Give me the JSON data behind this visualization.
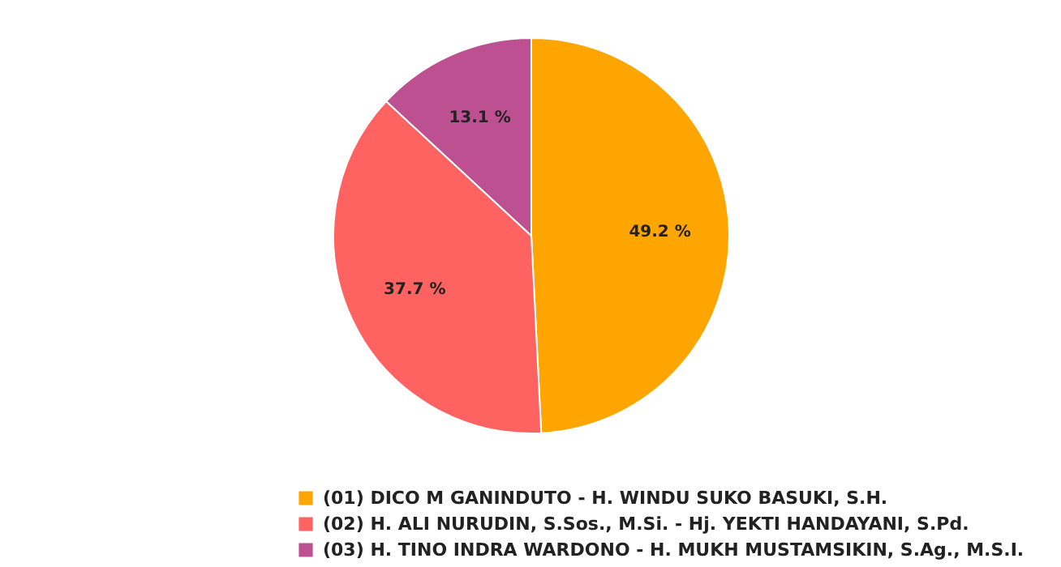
{
  "chart_data": {
    "type": "pie",
    "categories": [
      "(01) DICO M GANINDUTO - H. WINDU SUKO BASUKI, S.H.",
      "(02) H. ALI NURUDIN, S.Sos., M.Si. - Hj. YEKTI HANDAYANI, S.Pd.",
      "(03) H. TINO INDRA WARDONO - H. MUKH MUSTAMSIKIN, S.Ag., M.S.I."
    ],
    "values": [
      49.2,
      37.7,
      13.1
    ],
    "colors": [
      "#ffa500",
      "#ff6361",
      "#bc5090"
    ],
    "value_labels": [
      "49.2 %",
      "37.7 %",
      "13.1 %"
    ],
    "legend": "bottom"
  }
}
